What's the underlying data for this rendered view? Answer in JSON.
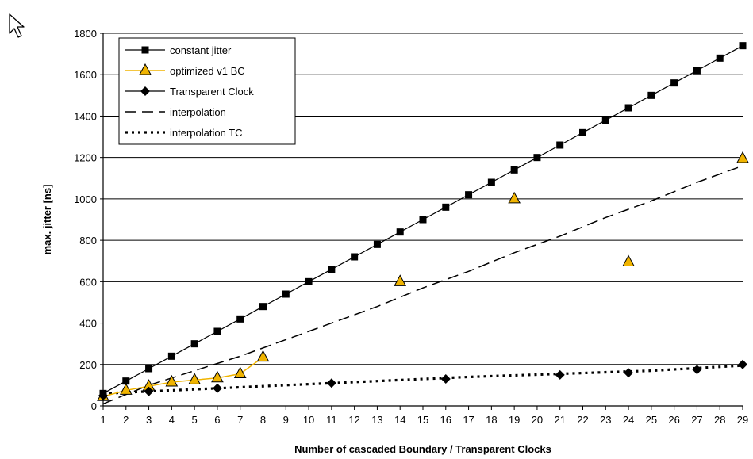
{
  "chart_data": {
    "type": "line",
    "title": "",
    "xlabel": "Number of cascaded Boundary / Transparent Clocks",
    "ylabel": "max. jitter [ns]",
    "xlim": [
      1,
      29
    ],
    "ylim": [
      0,
      1800
    ],
    "x_ticks": [
      "1",
      "2",
      "3",
      "4",
      "5",
      "6",
      "7",
      "8",
      "9",
      "10",
      "11",
      "12",
      "13",
      "14",
      "15",
      "16",
      "17",
      "18",
      "19",
      "20",
      "21",
      "22",
      "23",
      "24",
      "25",
      "26",
      "27",
      "28",
      "29"
    ],
    "y_ticks": [
      "0",
      "200",
      "400",
      "600",
      "800",
      "1000",
      "1200",
      "1400",
      "1600",
      "1800"
    ],
    "grid": "horizontal",
    "legend_position": "top-left",
    "series": [
      {
        "name": "constant jitter",
        "style": "solid",
        "marker": "square",
        "color": "#000000",
        "x": [
          1,
          2,
          3,
          4,
          5,
          6,
          7,
          8,
          9,
          10,
          11,
          12,
          13,
          14,
          15,
          16,
          17,
          18,
          19,
          20,
          21,
          22,
          23,
          24,
          25,
          26,
          27,
          28,
          29
        ],
        "y": [
          60,
          120,
          180,
          240,
          300,
          360,
          420,
          480,
          540,
          600,
          660,
          720,
          780,
          840,
          900,
          960,
          1020,
          1080,
          1140,
          1200,
          1260,
          1320,
          1380,
          1440,
          1500,
          1560,
          1620,
          1680,
          1740
        ]
      },
      {
        "name": "optimized v1 BC",
        "style": "solid",
        "marker": "triangle",
        "color": "#f0b400",
        "x": [
          1,
          2,
          3,
          4,
          5,
          6,
          7,
          8,
          14,
          19,
          24,
          29
        ],
        "y": [
          45,
          75,
          95,
          115,
          125,
          135,
          155,
          235,
          600,
          1000,
          695,
          1195
        ]
      },
      {
        "name": "Transparent Clock",
        "style": "none",
        "marker": "diamond",
        "color": "#000000",
        "x": [
          1,
          3,
          6,
          11,
          16,
          21,
          24,
          27,
          29
        ],
        "y": [
          50,
          70,
          85,
          110,
          130,
          150,
          160,
          175,
          200
        ]
      },
      {
        "name": "interpolation",
        "style": "dashed",
        "marker": "none",
        "color": "#000000",
        "x": [
          1,
          3,
          5,
          7,
          9,
          11,
          13,
          15,
          17,
          19,
          21,
          23,
          25,
          27,
          29
        ],
        "y": [
          10,
          100,
          170,
          240,
          320,
          400,
          480,
          570,
          650,
          740,
          820,
          910,
          990,
          1080,
          1160
        ]
      },
      {
        "name": "interpolation TC",
        "style": "dotted",
        "marker": "none",
        "color": "#000000",
        "x": [
          1,
          5,
          9,
          13,
          17,
          21,
          25,
          29
        ],
        "y": [
          60,
          80,
          100,
          120,
          140,
          155,
          170,
          195
        ]
      }
    ]
  }
}
